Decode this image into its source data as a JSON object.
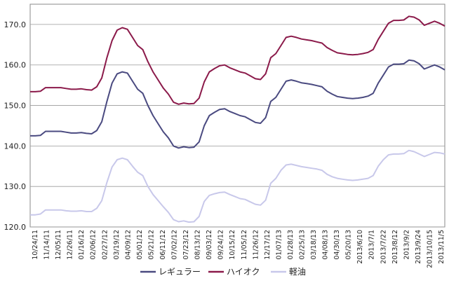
{
  "chart_data": {
    "type": "line",
    "title": "",
    "xlabel": "",
    "ylabel": "",
    "ylim": [
      120,
      175
    ],
    "yticks": [
      "120.0",
      "130.0",
      "140.0",
      "150.0",
      "160.0",
      "170.0"
    ],
    "grid": true,
    "legend_position": "bottom",
    "x_tick_labels": [
      "10/24/11",
      "11/14/11",
      "12/05/11",
      "12/26/11",
      "01/16/12",
      "02/06/12",
      "02/27/12",
      "03/19/12",
      "04/09/12",
      "05/01/12",
      "05/21/12",
      "06/11/12",
      "07/02/12",
      "07/23/12",
      "08/13/12",
      "09/03/12",
      "09/24/12",
      "10/15/12",
      "11/05/12",
      "11/26/12",
      "12/17/12",
      "01/07/13",
      "01/28/13",
      "02/25/13",
      "03/18/13",
      "04/08/13",
      "04/30/13",
      "05/20/13",
      "2013/6/10",
      "2013/7/1",
      "2013/7/22",
      "2013/8/12",
      "2013/9/2",
      "2013/9/24",
      "2013/10/15",
      "2013/11/5"
    ],
    "series": [
      {
        "name": "レギュラー",
        "color": "#4a4a80",
        "values": [
          142.5,
          142.5,
          142.6,
          143.6,
          143.6,
          143.6,
          143.6,
          143.4,
          143.2,
          143.2,
          143.3,
          143.1,
          143.0,
          143.8,
          146.0,
          151.0,
          155.5,
          157.8,
          158.3,
          158.0,
          156.0,
          154.0,
          153.0,
          150.0,
          147.5,
          145.5,
          143.5,
          142.0,
          140.0,
          139.5,
          139.8,
          139.6,
          139.7,
          141.0,
          145.0,
          147.5,
          148.3,
          149.0,
          149.2,
          148.5,
          148.0,
          147.5,
          147.2,
          146.5,
          145.8,
          145.6,
          147.0,
          151.0,
          152.0,
          154.0,
          156.0,
          156.3,
          156.0,
          155.6,
          155.4,
          155.2,
          154.9,
          154.6,
          153.5,
          152.8,
          152.2,
          152.0,
          151.8,
          151.7,
          151.8,
          152.0,
          152.3,
          153.0,
          155.5,
          157.5,
          159.5,
          160.2,
          160.2,
          160.3,
          161.2,
          161.0,
          160.3,
          159.0,
          159.5,
          160.0,
          159.5,
          158.8
        ]
      },
      {
        "name": "ハイオク",
        "color": "#8b1a4a",
        "values": [
          153.4,
          153.4,
          153.5,
          154.4,
          154.4,
          154.4,
          154.4,
          154.2,
          154.0,
          154.0,
          154.1,
          153.9,
          153.8,
          154.6,
          156.8,
          161.8,
          166.0,
          168.6,
          169.2,
          168.8,
          166.8,
          164.8,
          163.8,
          160.8,
          158.3,
          156.3,
          154.3,
          152.8,
          150.8,
          150.3,
          150.6,
          150.4,
          150.5,
          151.8,
          155.8,
          158.3,
          159.1,
          159.8,
          160.0,
          159.3,
          158.8,
          158.3,
          158.0,
          157.3,
          156.6,
          156.4,
          157.8,
          161.8,
          162.8,
          164.8,
          166.8,
          167.1,
          166.8,
          166.4,
          166.2,
          166.0,
          165.7,
          165.4,
          164.3,
          163.6,
          163.0,
          162.8,
          162.6,
          162.5,
          162.6,
          162.8,
          163.1,
          163.8,
          166.3,
          168.3,
          170.3,
          171.0,
          171.0,
          171.1,
          172.0,
          171.8,
          171.1,
          169.8,
          170.3,
          170.8,
          170.3,
          169.6
        ]
      },
      {
        "name": "軽油",
        "color": "#c8c8ea",
        "values": [
          123.0,
          123.0,
          123.2,
          124.2,
          124.2,
          124.2,
          124.2,
          124.0,
          123.9,
          123.9,
          124.0,
          123.8,
          123.8,
          124.6,
          126.5,
          131.0,
          134.8,
          136.6,
          137.0,
          136.6,
          135.0,
          133.5,
          132.7,
          130.0,
          128.0,
          126.5,
          125.0,
          123.6,
          121.8,
          121.3,
          121.5,
          121.2,
          121.3,
          122.6,
          126.3,
          127.8,
          128.2,
          128.5,
          128.6,
          128.0,
          127.5,
          127.0,
          126.8,
          126.2,
          125.6,
          125.4,
          126.6,
          130.8,
          132.0,
          134.0,
          135.3,
          135.5,
          135.2,
          134.9,
          134.7,
          134.5,
          134.3,
          134.0,
          133.0,
          132.4,
          132.0,
          131.8,
          131.6,
          131.5,
          131.6,
          131.8,
          132.0,
          132.7,
          135.0,
          136.6,
          137.8,
          138.0,
          138.0,
          138.1,
          138.9,
          138.6,
          138.0,
          137.4,
          137.9,
          138.4,
          138.3,
          138.0
        ]
      }
    ]
  }
}
